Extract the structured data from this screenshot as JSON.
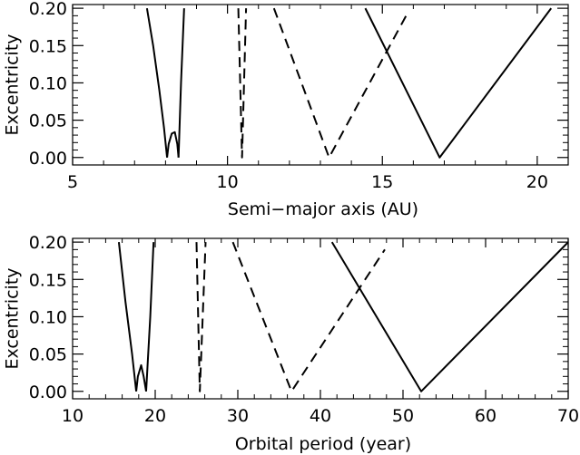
{
  "colors": {
    "line": "#000000",
    "background": "#ffffff"
  },
  "chart_data": [
    {
      "type": "line",
      "xlabel": "Semi−major axis (AU)",
      "ylabel": "Excentricity",
      "xlim": [
        5,
        21
      ],
      "ylim": [
        -0.01,
        0.205
      ],
      "xticks": [
        5,
        10,
        15,
        20
      ],
      "xtick_labels": [
        "5",
        "10",
        "15",
        "20"
      ],
      "yticks": [
        0.0,
        0.05,
        0.1,
        0.15,
        0.2
      ],
      "ytick_labels": [
        "0.00",
        "0.05",
        "0.10",
        "0.15",
        "0.20"
      ],
      "series": [
        {
          "style": "solid",
          "x": [
            7.4,
            7.6,
            7.8,
            7.95,
            8.05
          ],
          "y": [
            0.2,
            0.15,
            0.09,
            0.04,
            0.0
          ]
        },
        {
          "style": "solid",
          "x": [
            8.05,
            8.1,
            8.2,
            8.3,
            8.38,
            8.42
          ],
          "y": [
            0.0,
            0.018,
            0.032,
            0.034,
            0.018,
            0.0
          ]
        },
        {
          "style": "solid",
          "x": [
            8.42,
            8.5,
            8.6
          ],
          "y": [
            0.0,
            0.1,
            0.2
          ]
        },
        {
          "style": "dashed",
          "x": [
            10.35,
            10.47,
            10.6
          ],
          "y": [
            0.2,
            0.0,
            0.2
          ]
        },
        {
          "style": "dashed",
          "x": [
            11.5,
            13.28,
            15.82
          ],
          "y": [
            0.2,
            0.0,
            0.194
          ]
        },
        {
          "style": "solid",
          "x": [
            14.45,
            16.85,
            20.45
          ],
          "y": [
            0.2,
            0.0,
            0.2
          ]
        }
      ]
    },
    {
      "type": "line",
      "xlabel": "Orbital period (year)",
      "ylabel": "Excentricity",
      "xlim": [
        10,
        70
      ],
      "ylim": [
        -0.01,
        0.205
      ],
      "xticks": [
        10,
        20,
        30,
        40,
        50,
        60,
        70
      ],
      "xtick_labels": [
        "10",
        "20",
        "30",
        "40",
        "50",
        "60",
        "70"
      ],
      "yticks": [
        0.0,
        0.05,
        0.1,
        0.15,
        0.2
      ],
      "ytick_labels": [
        "0.00",
        "0.05",
        "0.10",
        "0.15",
        "0.20"
      ],
      "series": [
        {
          "style": "solid",
          "x": [
            15.6,
            16.4,
            17.2,
            17.7
          ],
          "y": [
            0.2,
            0.12,
            0.05,
            0.0
          ]
        },
        {
          "style": "solid",
          "x": [
            17.7,
            17.9,
            18.3,
            18.6,
            18.9
          ],
          "y": [
            0.0,
            0.02,
            0.035,
            0.02,
            0.0
          ]
        },
        {
          "style": "solid",
          "x": [
            18.9,
            19.4,
            19.8
          ],
          "y": [
            0.0,
            0.1,
            0.2
          ]
        },
        {
          "style": "dashed",
          "x": [
            25.0,
            25.4,
            26.1
          ],
          "y": [
            0.2,
            0.0,
            0.2
          ]
        },
        {
          "style": "dashed",
          "x": [
            29.4,
            36.5,
            47.8
          ],
          "y": [
            0.2,
            0.0,
            0.19
          ]
        },
        {
          "style": "solid",
          "x": [
            41.4,
            52.2,
            70.0
          ],
          "y": [
            0.2,
            0.0,
            0.2
          ]
        }
      ]
    }
  ]
}
